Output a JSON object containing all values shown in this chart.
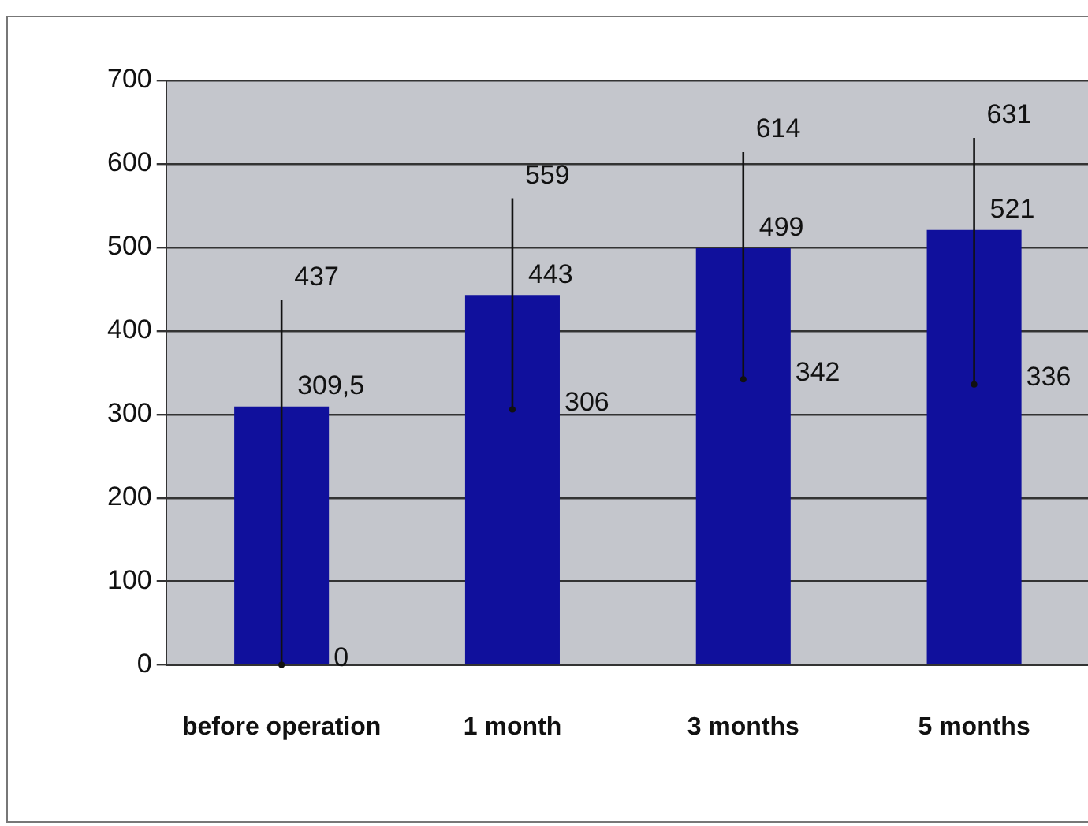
{
  "chart_data": {
    "type": "bar",
    "categories": [
      "before operation",
      "1 month",
      "3 months",
      "5 months"
    ],
    "values": [
      309.5,
      443,
      499,
      521
    ],
    "color": "#10109c",
    "errors": [
      [
        0,
        437
      ],
      [
        306,
        559
      ],
      [
        342,
        614
      ],
      [
        336,
        631
      ]
    ],
    "value_labels": [
      "309,5",
      "443",
      "499",
      "521"
    ],
    "annotations": [
      {
        "text": "437",
        "x": "before operation",
        "y": 437
      },
      {
        "text": "0",
        "x": "before operation",
        "y": 0
      },
      {
        "text": "559",
        "x": "1 month",
        "y": 559
      },
      {
        "text": "306",
        "x": "1 month",
        "y": 306
      },
      {
        "text": "614",
        "x": "3 months",
        "y": 614
      },
      {
        "text": "342",
        "x": "3 months",
        "y": 342
      },
      {
        "text": "631",
        "x": "5 months",
        "y": 631
      },
      {
        "text": "336",
        "x": "5 months",
        "y": 336
      }
    ],
    "ylim": [
      0,
      700
    ],
    "yticks": [
      0,
      100,
      200,
      300,
      400,
      500,
      600,
      700
    ],
    "grid": "y",
    "legend": false
  }
}
